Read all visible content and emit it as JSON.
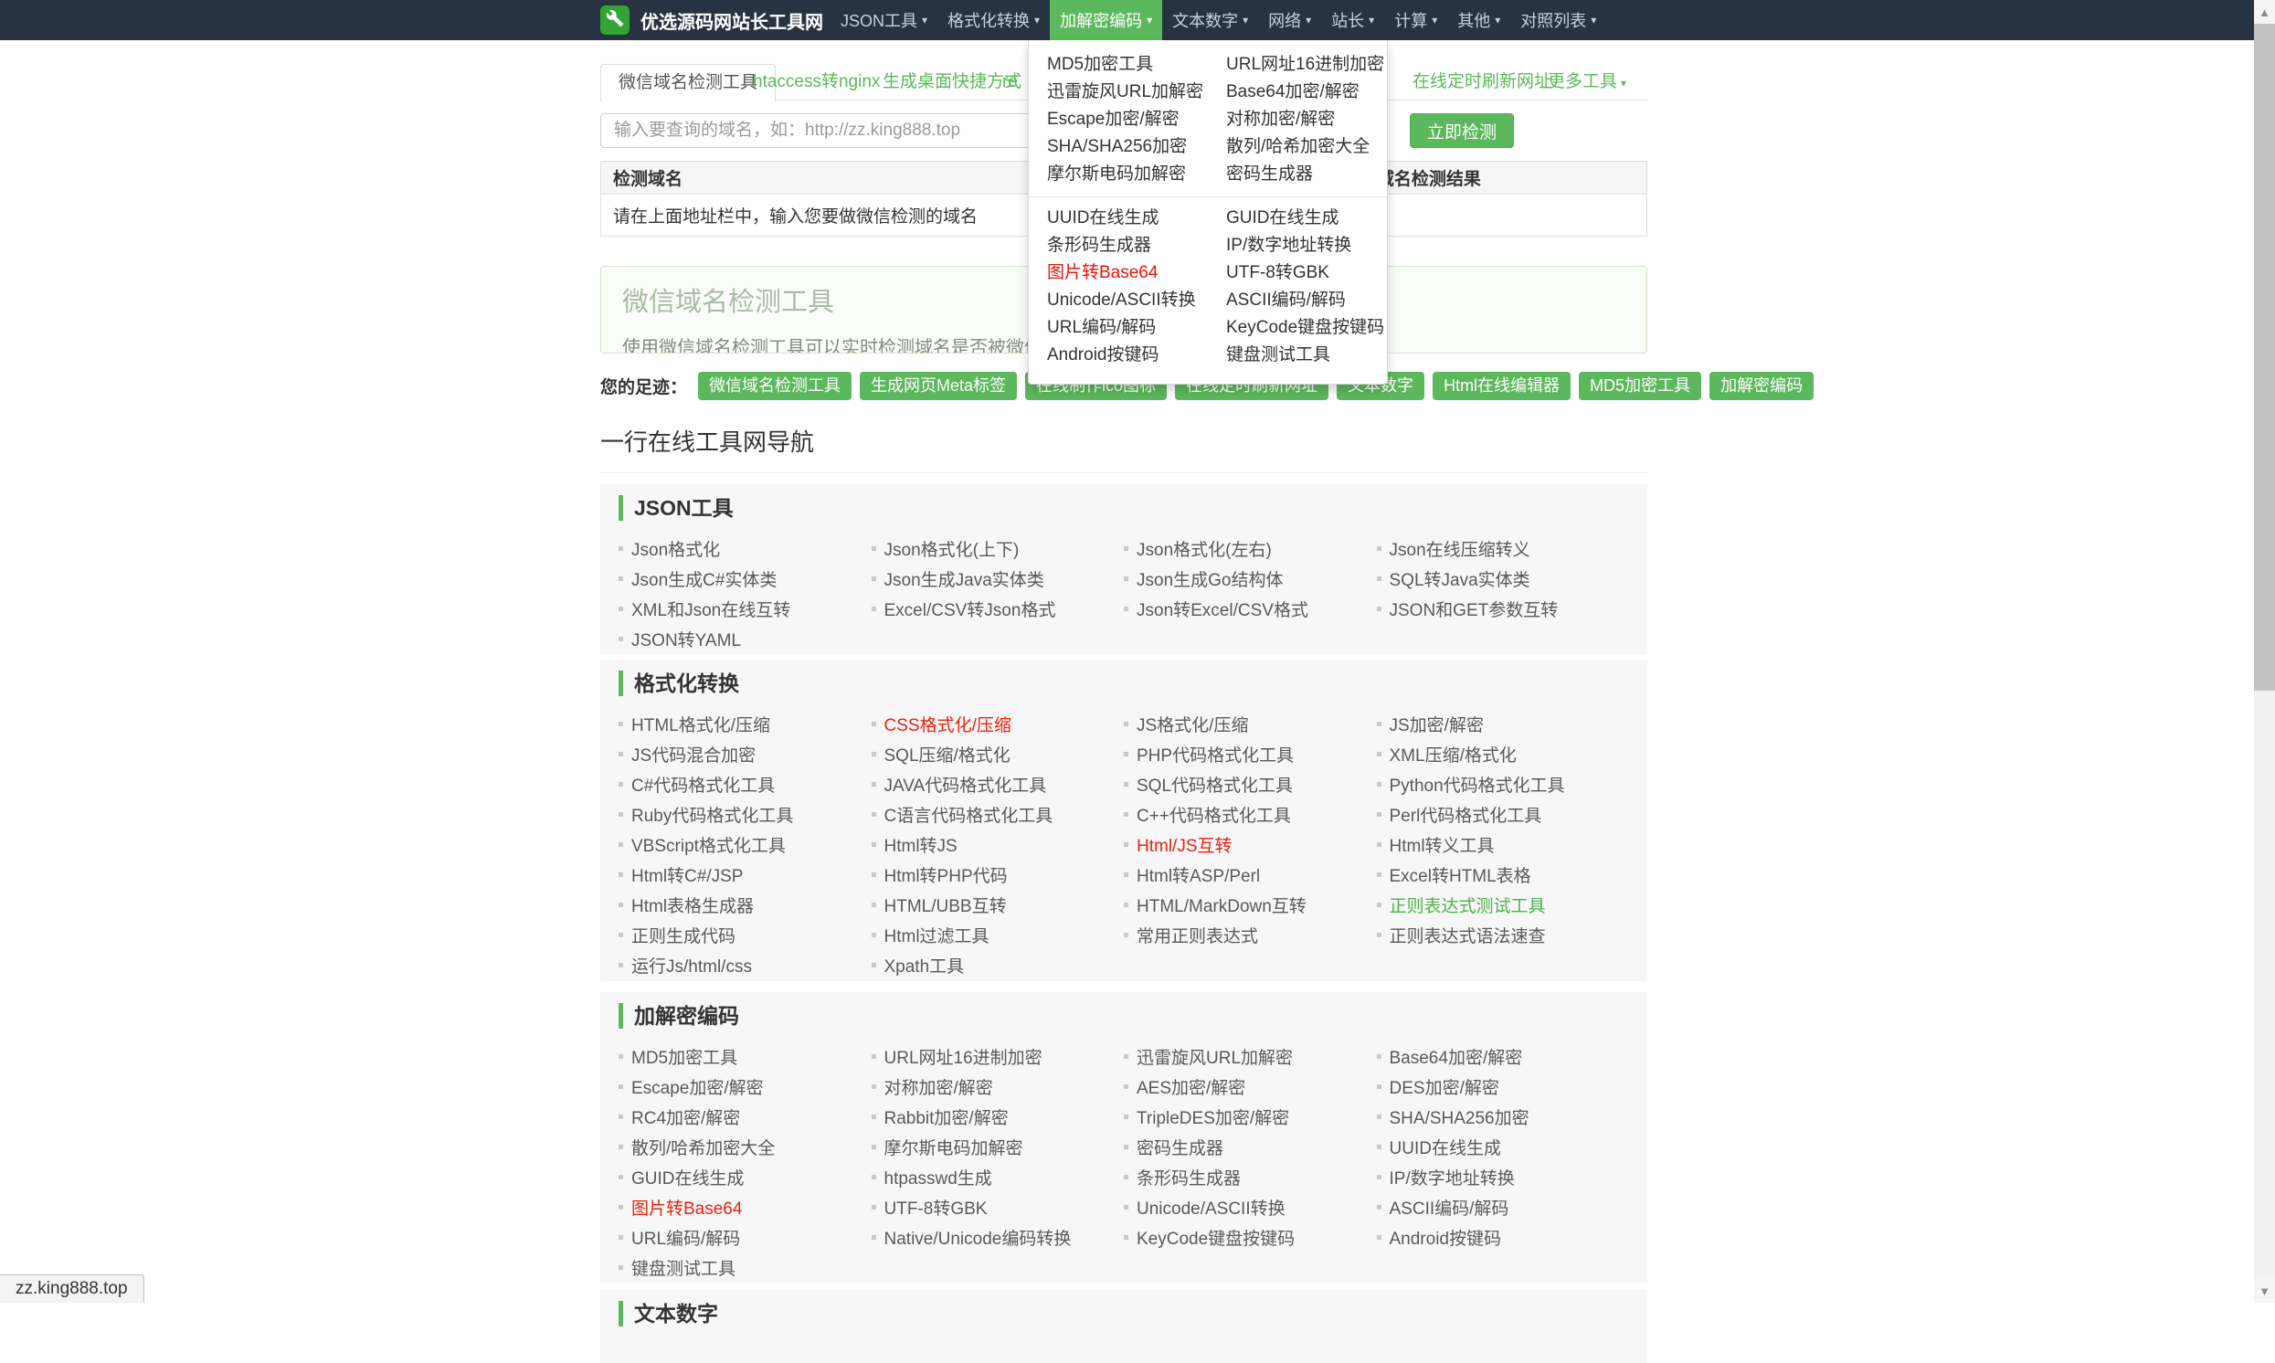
{
  "colors": {
    "navbar_bg": "#273340",
    "accent_green": "#5cb85c",
    "logo_green": "#33a433",
    "link_red": "#e8240f",
    "link_green": "#4cb04c"
  },
  "icons": {
    "logo": "wrench-icon",
    "caret": "▾",
    "scroll_up": "▲",
    "scroll_down": "▼"
  },
  "navbar": {
    "brand": "优选源码网站长工具网",
    "items": [
      {
        "label": "JSON工具",
        "active": false
      },
      {
        "label": "格式化转换",
        "active": false
      },
      {
        "label": "加解密编码",
        "active": true
      },
      {
        "label": "文本数字",
        "active": false
      },
      {
        "label": "网络",
        "active": false
      },
      {
        "label": "站长",
        "active": false
      },
      {
        "label": "计算",
        "active": false
      },
      {
        "label": "其他",
        "active": false
      },
      {
        "label": "对照列表",
        "active": false
      }
    ]
  },
  "dropdown": {
    "group1": [
      {
        "label": "MD5加密工具"
      },
      {
        "label": "URL网址16进制加密"
      },
      {
        "label": "迅雷旋风URL加解密"
      },
      {
        "label": "Base64加密/解密"
      },
      {
        "label": "Escape加密/解密"
      },
      {
        "label": "对称加密/解密"
      },
      {
        "label": "SHA/SHA256加密"
      },
      {
        "label": "散列/哈希加密大全"
      },
      {
        "label": "摩尔斯电码加解密"
      },
      {
        "label": "密码生成器"
      }
    ],
    "group2": [
      {
        "label": "UUID在线生成"
      },
      {
        "label": "GUID在线生成"
      },
      {
        "label": "条形码生成器"
      },
      {
        "label": "IP/数字地址转换"
      },
      {
        "label": "图片转Base64",
        "color": "red"
      },
      {
        "label": "UTF-8转GBK"
      },
      {
        "label": "Unicode/ASCII转换"
      },
      {
        "label": "ASCII编码/解码"
      },
      {
        "label": "URL编码/解码"
      },
      {
        "label": "KeyCode键盘按键码"
      },
      {
        "label": "Android按键码"
      },
      {
        "label": "键盘测试工具"
      }
    ]
  },
  "tabs": [
    {
      "label": "微信域名检测工具",
      "active": true
    },
    {
      "label": "htaccess转nginx",
      "active": false
    },
    {
      "label": "生成桌面快捷方式",
      "active": false
    },
    {
      "label": "re",
      "active": false
    },
    {
      "label": "在线定时刷新网址",
      "active": false
    },
    {
      "label": "更多工具",
      "active": false,
      "caret": true
    }
  ],
  "search": {
    "placeholder": "输入要查询的域名，如：http://zz.king888.top",
    "button_label": "立即检测"
  },
  "result_table": {
    "headers": [
      "检测域名",
      "域名检测结果"
    ],
    "message": "请在上面地址栏中，输入您要做微信检测的域名"
  },
  "infobox": {
    "title": "微信域名检测工具",
    "description": "使用微信域名检测工具可以实时检测域名是否被微信屏蔽，检测您的域名"
  },
  "footprints": {
    "label": "您的足迹：",
    "buttons": [
      "微信域名检测工具",
      "生成网页Meta标签",
      "在线制作ico图标",
      "在线定时刷新网址",
      "文本数字",
      "Html在线编辑器",
      "MD5加密工具",
      "加解密编码"
    ]
  },
  "directory": {
    "heading": "一行在线工具网导航",
    "sections": [
      {
        "title": "JSON工具",
        "items": [
          {
            "label": "Json格式化"
          },
          {
            "label": "Json格式化(上下)"
          },
          {
            "label": "Json格式化(左右)"
          },
          {
            "label": "Json在线压缩转义"
          },
          {
            "label": "Json生成C#实体类"
          },
          {
            "label": "Json生成Java实体类"
          },
          {
            "label": "Json生成Go结构体"
          },
          {
            "label": "SQL转Java实体类"
          },
          {
            "label": "XML和Json在线互转"
          },
          {
            "label": "Excel/CSV转Json格式"
          },
          {
            "label": "Json转Excel/CSV格式"
          },
          {
            "label": "JSON和GET参数互转"
          },
          {
            "label": "JSON转YAML"
          }
        ]
      },
      {
        "title": "格式化转换",
        "items": [
          {
            "label": "HTML格式化/压缩"
          },
          {
            "label": "CSS格式化/压缩",
            "color": "red"
          },
          {
            "label": "JS格式化/压缩"
          },
          {
            "label": "JS加密/解密"
          },
          {
            "label": "JS代码混合加密"
          },
          {
            "label": "SQL压缩/格式化"
          },
          {
            "label": "PHP代码格式化工具"
          },
          {
            "label": "XML压缩/格式化"
          },
          {
            "label": "C#代码格式化工具"
          },
          {
            "label": "JAVA代码格式化工具"
          },
          {
            "label": "SQL代码格式化工具"
          },
          {
            "label": "Python代码格式化工具"
          },
          {
            "label": "Ruby代码格式化工具"
          },
          {
            "label": "C语言代码格式化工具"
          },
          {
            "label": "C++代码格式化工具"
          },
          {
            "label": "Perl代码格式化工具"
          },
          {
            "label": "VBScript格式化工具"
          },
          {
            "label": "Html转JS"
          },
          {
            "label": "Html/JS互转",
            "color": "red"
          },
          {
            "label": "Html转义工具"
          },
          {
            "label": "Html转C#/JSP"
          },
          {
            "label": "Html转PHP代码"
          },
          {
            "label": "Html转ASP/Perl"
          },
          {
            "label": "Excel转HTML表格"
          },
          {
            "label": "Html表格生成器"
          },
          {
            "label": "HTML/UBB互转"
          },
          {
            "label": "HTML/MarkDown互转"
          },
          {
            "label": "正则表达式测试工具",
            "color": "green"
          },
          {
            "label": "正则生成代码"
          },
          {
            "label": "Html过滤工具"
          },
          {
            "label": "常用正则表达式"
          },
          {
            "label": "正则表达式语法速查"
          },
          {
            "label": "运行Js/html/css"
          },
          {
            "label": "Xpath工具"
          }
        ]
      },
      {
        "title": "加解密编码",
        "items": [
          {
            "label": "MD5加密工具"
          },
          {
            "label": "URL网址16进制加密"
          },
          {
            "label": "迅雷旋风URL加解密"
          },
          {
            "label": "Base64加密/解密"
          },
          {
            "label": "Escape加密/解密"
          },
          {
            "label": "对称加密/解密"
          },
          {
            "label": "AES加密/解密"
          },
          {
            "label": "DES加密/解密"
          },
          {
            "label": "RC4加密/解密"
          },
          {
            "label": "Rabbit加密/解密"
          },
          {
            "label": "TripleDES加密/解密"
          },
          {
            "label": "SHA/SHA256加密"
          },
          {
            "label": "散列/哈希加密大全"
          },
          {
            "label": "摩尔斯电码加解密"
          },
          {
            "label": "密码生成器"
          },
          {
            "label": "UUID在线生成"
          },
          {
            "label": "GUID在线生成"
          },
          {
            "label": "htpasswd生成"
          },
          {
            "label": "条形码生成器"
          },
          {
            "label": "IP/数字地址转换"
          },
          {
            "label": "图片转Base64",
            "color": "red"
          },
          {
            "label": "UTF-8转GBK"
          },
          {
            "label": "Unicode/ASCII转换"
          },
          {
            "label": "ASCII编码/解码"
          },
          {
            "label": "URL编码/解码"
          },
          {
            "label": "Native/Unicode编码转换"
          },
          {
            "label": "KeyCode键盘按键码"
          },
          {
            "label": "Android按键码"
          },
          {
            "label": "键盘测试工具"
          }
        ]
      },
      {
        "title": "文本数字",
        "items": []
      }
    ]
  },
  "statusbar": {
    "url": "zz.king888.top"
  }
}
